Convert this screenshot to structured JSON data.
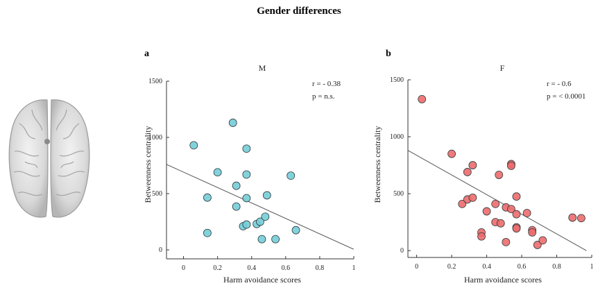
{
  "figure": {
    "title": "Gender differences"
  },
  "chart_data": [
    {
      "panel": "a",
      "type": "scatter",
      "title": "M",
      "xlabel": "Harm avoidance scores",
      "ylabel": "Betweenness centrality",
      "xlim": [
        -0.1,
        1.0
      ],
      "ylim": [
        -80,
        1500
      ],
      "xticks": [
        0,
        0.2,
        0.4,
        0.6,
        0.8,
        1
      ],
      "xticklabels": [
        "0",
        "0.2",
        "0.4",
        "0.6",
        "0.8",
        "1"
      ],
      "yticks": [
        0,
        500,
        1000,
        1500
      ],
      "yticklabels": [
        "0",
        "500",
        "1000",
        "1500"
      ],
      "annotations": [
        "r = - 0.38",
        "p = n.s."
      ],
      "grid": false,
      "marker_color": "#74CDD8",
      "x": [
        0.06,
        0.29,
        0.37,
        0.2,
        0.37,
        0.31,
        0.14,
        0.37,
        0.49,
        0.63,
        0.31,
        0.14,
        0.35,
        0.37,
        0.43,
        0.45,
        0.48,
        0.46,
        0.54,
        0.66
      ],
      "y": [
        930,
        1130,
        900,
        690,
        670,
        570,
        465,
        460,
        485,
        660,
        385,
        150,
        210,
        225,
        230,
        250,
        295,
        95,
        95,
        175
      ],
      "fit_line": {
        "x": [
          -0.1,
          1.0
        ],
        "y": [
          760,
          5
        ]
      }
    },
    {
      "panel": "b",
      "type": "scatter",
      "title": "F",
      "xlabel": "Harm avoidance scores",
      "ylabel": "Betweenness centrality",
      "xlim": [
        -0.05,
        1.0
      ],
      "ylim": [
        -60,
        1500
      ],
      "xticks": [
        0,
        0.2,
        0.4,
        0.6,
        0.8,
        1
      ],
      "xticklabels": [
        "0",
        "0.2",
        "0.4",
        "0.6",
        "0.8",
        "1"
      ],
      "yticks": [
        0,
        500,
        1000,
        1500
      ],
      "yticklabels": [
        "0",
        "500",
        "1000",
        "1500"
      ],
      "annotations": [
        "r = - 0.6",
        "p = < 0.0001"
      ],
      "grid": false,
      "marker_color": "#EC6B6D",
      "x": [
        0.03,
        0.2,
        0.32,
        0.29,
        0.47,
        0.54,
        0.54,
        0.26,
        0.29,
        0.32,
        0.4,
        0.45,
        0.51,
        0.54,
        0.57,
        0.63,
        0.57,
        0.45,
        0.48,
        0.37,
        0.37,
        0.51,
        0.57,
        0.57,
        0.66,
        0.66,
        0.69,
        0.72,
        0.89,
        0.94
      ],
      "y": [
        1330,
        850,
        750,
        690,
        665,
        760,
        745,
        410,
        450,
        465,
        345,
        410,
        380,
        365,
        475,
        330,
        320,
        250,
        240,
        160,
        125,
        75,
        205,
        195,
        180,
        160,
        50,
        90,
        290,
        285
      ],
      "fit_line": {
        "x": [
          -0.05,
          0.97
        ],
        "y": [
          880,
          0
        ]
      }
    }
  ]
}
